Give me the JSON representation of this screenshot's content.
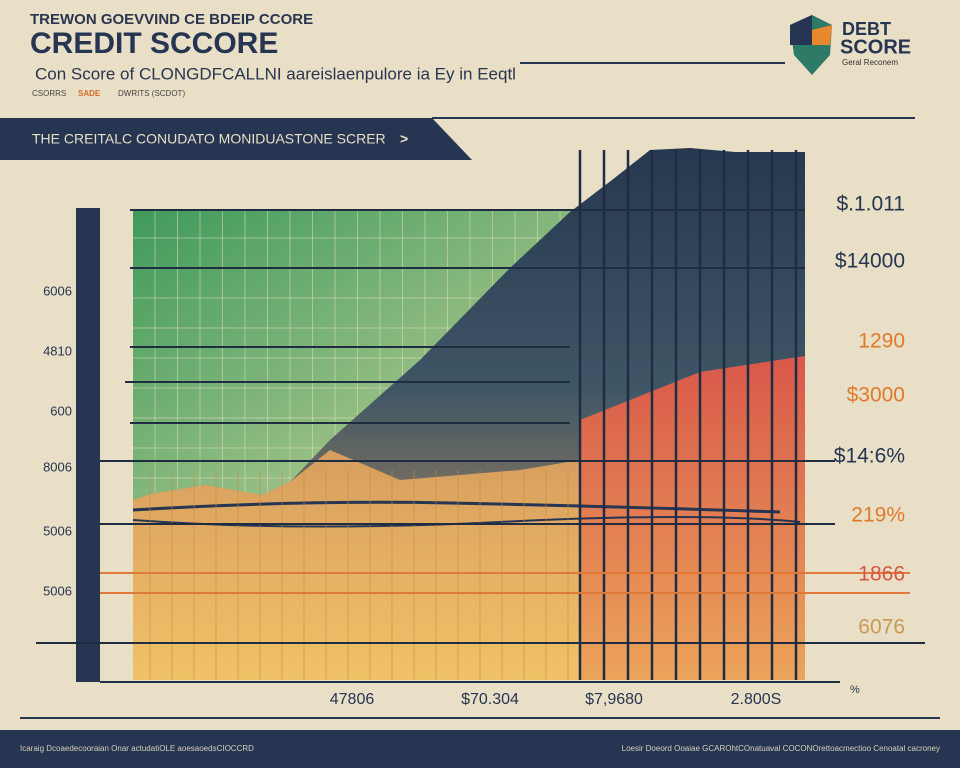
{
  "header": {
    "kicker": "TREWON GOEVVIND CE BDEIP CCORE",
    "title": "CREDIT SCCORE",
    "subtitle": "Con Score of CLONGDFCALLNI aareislaenpulore ia Ey in Eeqtl",
    "tags": [
      "CSORRS",
      "SADE",
      "DWRITS (SCDOT)"
    ]
  },
  "logo": {
    "title_top": "DEBT",
    "title_bottom": "SCORE",
    "caption": "Geral Reconem"
  },
  "banner": {
    "text": "THE CREITALC CONUDATO MONIDUASTONE SCRER",
    "arrow": ">"
  },
  "left_labels": [
    "6006",
    "4810",
    "600",
    "8006",
    "5006",
    "5006"
  ],
  "right_labels": [
    "$.1.011",
    "$14000",
    "1290",
    "$3000",
    "$14:6%",
    "219%",
    "1866",
    "6076"
  ],
  "bottom_labels": [
    "47806",
    "$70.304",
    "$7,9680",
    "2.800S"
  ],
  "corner_label": "%",
  "footer": {
    "left": "Icaraig Dcoaedecooraian Onar actudatiOLE aoesaoedsCIOCCRD",
    "right": "Loesir Doeord Ooaiae GCAROhtCOnatuaval COCONOrettoacmectioo Cenoatal cacroney"
  }
}
